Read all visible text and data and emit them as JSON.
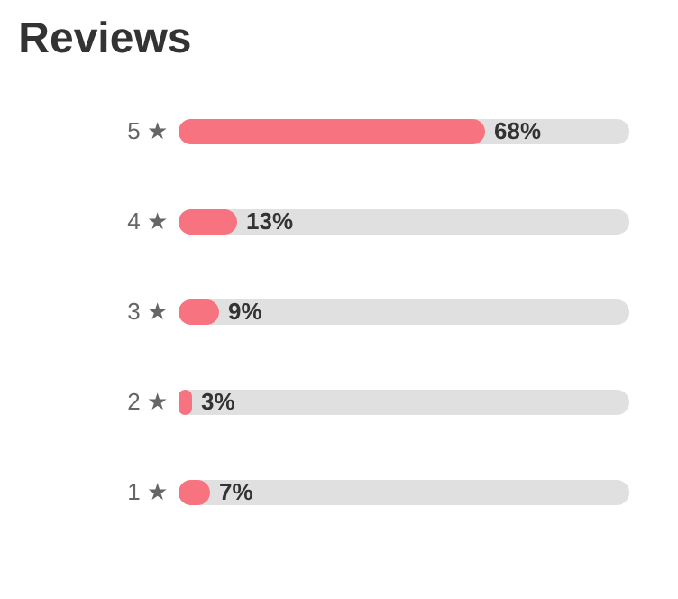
{
  "chart_data": {
    "type": "bar",
    "orientation": "horizontal",
    "title": "Reviews",
    "categories": [
      "5 ★",
      "4 ★",
      "3 ★",
      "2 ★",
      "1 ★"
    ],
    "values": [
      68,
      13,
      9,
      3,
      7
    ],
    "value_labels": [
      "68%",
      "13%",
      "9%",
      "3%",
      "7%"
    ],
    "color": "#f7737f",
    "xlim": [
      0,
      100
    ],
    "tick_labels": "y"
  }
}
